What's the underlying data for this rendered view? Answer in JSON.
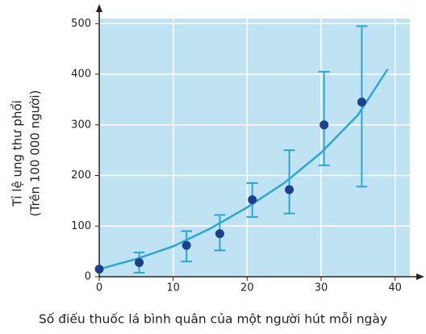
{
  "chart_data": {
    "type": "scatter",
    "ylabel": [
      "Tỉ lệ ung thư phổi",
      "(Trên 100 000 người)"
    ],
    "xlabel": "Số điếu thuốc lá bình quân của một người hút mỗi ngày",
    "x": [
      0,
      5.4,
      11.8,
      16.3,
      20.7,
      25.7,
      30.4,
      35.5
    ],
    "values": [
      15,
      28,
      62,
      85,
      152,
      172,
      300,
      345
    ],
    "error_high": [
      null,
      20,
      28,
      37,
      33,
      78,
      105,
      150
    ],
    "error_low": [
      null,
      20,
      32,
      33,
      34,
      47,
      80,
      167
    ],
    "color": "#1c3f8f",
    "error_color": "#27a8d5",
    "curve": {
      "x": [
        0,
        5,
        10,
        15,
        20,
        25,
        30,
        35,
        39
      ],
      "values": [
        15,
        35,
        60,
        95,
        137,
        185,
        245,
        320,
        410
      ],
      "color": "#27a8d5"
    },
    "xlim": [
      0,
      42
    ],
    "ylim": [
      0,
      510
    ],
    "xticks": [
      0,
      10,
      20,
      30,
      40
    ],
    "yticks": [
      0,
      100,
      200,
      300,
      400,
      500
    ],
    "grid": true,
    "background": "#bfe3f3"
  }
}
